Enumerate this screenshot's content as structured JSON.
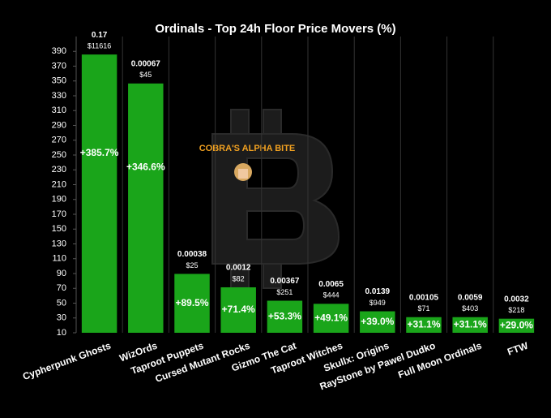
{
  "chart_data": {
    "type": "bar",
    "title": "Ordinals - Top 24h Floor Price Movers (%)",
    "watermark": "COBRA'S ALPHA BITE",
    "categories": [
      "Cypherpunk Ghosts",
      "WizOrds",
      "Taproot Puppets",
      "Cursed Mutant Rocks",
      "Gizmo The Cat",
      "Taproot Witches",
      "Skullx: Origins",
      "RayStone by Pawel Dudko",
      "Full Moon Ordinals",
      "FTW"
    ],
    "values": [
      385.7,
      346.6,
      89.5,
      71.4,
      53.3,
      49.1,
      39.0,
      31.1,
      31.1,
      29.0
    ],
    "value_labels": [
      "+385.7%",
      "+346.6%",
      "+89.5%",
      "+71.4%",
      "+53.3%",
      "+49.1%",
      "+39.0%",
      "+31.1%",
      "+31.1%",
      "+29.0%"
    ],
    "floor_prices": [
      0.17,
      0.00067,
      0.00038,
      0.0012,
      0.00367,
      0.0065,
      0.0139,
      0.00105,
      0.0059,
      0.0032
    ],
    "volumes": [
      "$11616",
      "$45",
      "$25",
      "$82",
      "$251",
      "$444",
      "$949",
      "$71",
      "$403",
      "$218"
    ],
    "color": "#1aa51a",
    "ylim": [
      10,
      410
    ],
    "yticks": [
      10,
      30,
      50,
      70,
      90,
      110,
      130,
      150,
      170,
      190,
      210,
      230,
      250,
      270,
      290,
      310,
      330,
      350,
      370,
      390
    ],
    "grid": true
  }
}
